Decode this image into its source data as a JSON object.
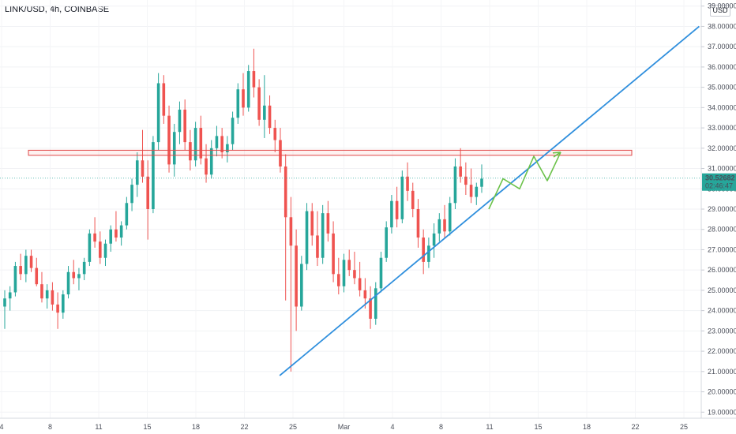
{
  "header": {
    "symbol": "LINK/USD, 4h, COINBASE",
    "currency": "USD"
  },
  "price_badge": {
    "price": "30.52682",
    "countdown": "02:46:47",
    "color": "#26a69a"
  },
  "colors": {
    "up": "#26a69a",
    "down": "#ef5350",
    "trendline": "#2f8fdd",
    "resistance": "#e04848",
    "projection": "#6cc24a"
  },
  "chart_data": {
    "type": "candlestick",
    "y_axis": {
      "range": [
        18.7,
        39.3
      ],
      "ticks": [
        "19.00000",
        "20.00000",
        "21.00000",
        "22.00000",
        "23.00000",
        "24.00000",
        "25.00000",
        "26.00000",
        "27.00000",
        "28.00000",
        "29.00000",
        "30.00000",
        "31.00000",
        "32.00000",
        "33.00000",
        "34.00000",
        "35.00000",
        "36.00000",
        "37.00000",
        "38.00000",
        "39.00000"
      ],
      "position": "right"
    },
    "x_axis": {
      "tick_labels": [
        "4",
        "8",
        "11",
        "15",
        "18",
        "22",
        "25",
        "Mar",
        "4",
        "8",
        "11",
        "15",
        "18",
        "22",
        "25"
      ]
    },
    "series": [
      {
        "values": [
          [
            24.2,
            25.0,
            23.1,
            24.6
          ],
          [
            24.6,
            25.2,
            24.0,
            24.9
          ],
          [
            24.9,
            26.4,
            24.7,
            26.2
          ],
          [
            26.2,
            26.8,
            25.5,
            25.8
          ],
          [
            25.8,
            27.0,
            25.4,
            26.7
          ],
          [
            26.7,
            27.0,
            25.9,
            26.1
          ],
          [
            26.1,
            26.6,
            25.2,
            25.3
          ],
          [
            25.3,
            25.9,
            24.4,
            24.6
          ],
          [
            24.6,
            25.3,
            24.1,
            25.0
          ],
          [
            25.0,
            25.4,
            24.0,
            24.3
          ],
          [
            24.3,
            24.9,
            23.1,
            23.9
          ],
          [
            23.9,
            25.0,
            23.6,
            24.8
          ],
          [
            24.8,
            26.2,
            24.6,
            25.9
          ],
          [
            25.9,
            26.5,
            25.3,
            25.6
          ],
          [
            25.6,
            26.1,
            25.0,
            25.8
          ],
          [
            25.8,
            26.6,
            25.5,
            26.4
          ],
          [
            26.4,
            28.0,
            26.2,
            27.8
          ],
          [
            27.8,
            28.6,
            27.1,
            27.4
          ],
          [
            27.4,
            27.9,
            26.3,
            26.6
          ],
          [
            26.6,
            27.5,
            26.2,
            27.3
          ],
          [
            27.3,
            28.2,
            26.9,
            28.0
          ],
          [
            28.0,
            28.9,
            27.4,
            27.6
          ],
          [
            27.6,
            28.4,
            27.2,
            28.2
          ],
          [
            28.2,
            29.6,
            28.0,
            29.3
          ],
          [
            29.3,
            30.5,
            28.9,
            30.2
          ],
          [
            30.2,
            31.8,
            29.6,
            31.4
          ],
          [
            31.4,
            32.9,
            30.3,
            30.6
          ],
          [
            30.6,
            31.4,
            27.5,
            29.0
          ],
          [
            29.0,
            32.6,
            28.8,
            32.3
          ],
          [
            32.3,
            35.7,
            31.9,
            35.2
          ],
          [
            35.2,
            35.6,
            33.2,
            33.6
          ],
          [
            33.6,
            34.1,
            30.8,
            31.2
          ],
          [
            31.2,
            33.2,
            30.6,
            32.8
          ],
          [
            32.8,
            34.3,
            32.2,
            33.9
          ],
          [
            33.9,
            34.4,
            31.9,
            32.3
          ],
          [
            32.3,
            32.9,
            30.9,
            31.4
          ],
          [
            31.4,
            33.3,
            31.1,
            33.0
          ],
          [
            33.0,
            33.6,
            31.2,
            31.5
          ],
          [
            31.5,
            32.2,
            30.3,
            30.7
          ],
          [
            30.7,
            32.4,
            30.5,
            32.0
          ],
          [
            32.0,
            33.1,
            31.6,
            32.6
          ],
          [
            32.6,
            33.0,
            31.5,
            31.8
          ],
          [
            31.8,
            32.6,
            31.3,
            32.2
          ],
          [
            32.2,
            33.8,
            31.9,
            33.5
          ],
          [
            33.5,
            35.2,
            33.2,
            34.9
          ],
          [
            34.9,
            35.7,
            33.6,
            34.0
          ],
          [
            34.0,
            36.1,
            33.8,
            35.8
          ],
          [
            35.8,
            36.9,
            34.5,
            35.0
          ],
          [
            35.0,
            35.4,
            33.1,
            33.4
          ],
          [
            33.4,
            35.6,
            32.5,
            34.1
          ],
          [
            34.1,
            34.6,
            32.7,
            33.0
          ],
          [
            33.0,
            33.4,
            31.8,
            32.4
          ],
          [
            32.4,
            33.0,
            30.8,
            31.1
          ],
          [
            31.1,
            31.7,
            24.5,
            28.6
          ],
          [
            28.6,
            29.6,
            21.0,
            27.2
          ],
          [
            27.2,
            28.0,
            23.0,
            24.2
          ],
          [
            24.2,
            26.7,
            24.0,
            26.3
          ],
          [
            26.3,
            29.3,
            26.0,
            28.9
          ],
          [
            28.9,
            29.3,
            27.2,
            27.7
          ],
          [
            27.7,
            28.9,
            26.2,
            26.6
          ],
          [
            26.6,
            29.2,
            26.3,
            28.8
          ],
          [
            28.8,
            29.4,
            27.4,
            27.8
          ],
          [
            27.8,
            28.4,
            25.4,
            25.8
          ],
          [
            25.8,
            26.6,
            24.8,
            25.2
          ],
          [
            25.2,
            26.8,
            24.9,
            26.5
          ],
          [
            26.5,
            27.0,
            25.7,
            26.0
          ],
          [
            26.0,
            26.9,
            25.3,
            25.6
          ],
          [
            25.6,
            26.4,
            24.7,
            25.0
          ],
          [
            25.0,
            25.6,
            24.1,
            24.6
          ],
          [
            24.6,
            25.2,
            23.1,
            23.6
          ],
          [
            23.6,
            25.4,
            23.3,
            25.1
          ],
          [
            25.1,
            26.9,
            24.9,
            26.6
          ],
          [
            26.6,
            28.4,
            26.4,
            28.1
          ],
          [
            28.1,
            29.7,
            27.8,
            29.4
          ],
          [
            29.4,
            30.1,
            28.1,
            28.5
          ],
          [
            28.5,
            30.9,
            28.3,
            30.6
          ],
          [
            30.6,
            31.3,
            29.4,
            29.9
          ],
          [
            29.9,
            30.3,
            28.6,
            29.0
          ],
          [
            29.0,
            29.5,
            27.1,
            27.6
          ],
          [
            27.6,
            28.0,
            25.8,
            26.4
          ],
          [
            26.4,
            27.6,
            26.1,
            27.2
          ],
          [
            27.2,
            28.3,
            26.6,
            27.8
          ],
          [
            27.8,
            28.8,
            27.4,
            28.5
          ],
          [
            28.5,
            29.2,
            27.6,
            27.9
          ],
          [
            27.9,
            29.6,
            27.7,
            29.3
          ],
          [
            29.3,
            31.5,
            29.0,
            31.1
          ],
          [
            31.1,
            32.0,
            30.3,
            30.6
          ],
          [
            30.6,
            31.3,
            29.7,
            30.2
          ],
          [
            30.2,
            31.0,
            29.3,
            29.6
          ],
          [
            29.6,
            30.3,
            29.2,
            30.1
          ],
          [
            30.1,
            31.2,
            29.8,
            30.5
          ]
        ]
      }
    ],
    "annotations": [
      {
        "type": "resistance_box",
        "top": 31.9,
        "bottom": 31.65
      },
      {
        "type": "ascending_trendline",
        "from": [
          0.38,
          20.8
        ],
        "to": [
          0.95,
          38.0
        ]
      },
      {
        "type": "projection_zigzag",
        "points": [
          29.0,
          30.5,
          30.0,
          31.6,
          30.4,
          31.8
        ]
      }
    ]
  }
}
